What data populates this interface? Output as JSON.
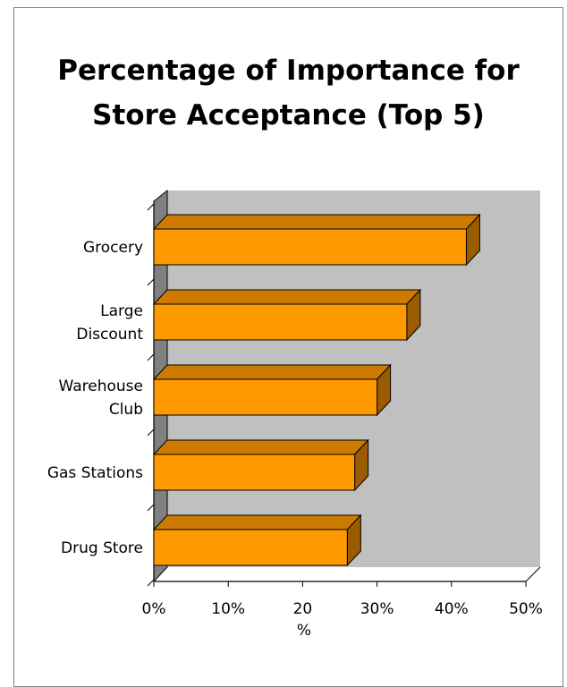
{
  "chart_data": {
    "type": "bar",
    "orientation": "horizontal",
    "title_lines": [
      "Percentage of Importance for",
      "Store Acceptance (Top 5)"
    ],
    "categories": [
      [
        "Grocery"
      ],
      [
        "Large",
        "Discount"
      ],
      [
        "Warehouse",
        "Club"
      ],
      [
        "Gas Stations"
      ],
      [
        "Drug Store"
      ]
    ],
    "values": [
      42,
      34,
      30,
      27,
      26
    ],
    "xlim": [
      0,
      50
    ],
    "xticks": [
      "0%",
      "10%",
      "20",
      "30%",
      "40%",
      "50%"
    ],
    "xlabel": "%",
    "grid": false,
    "legend": "none",
    "three_d": true,
    "colors": {
      "bar_front": "#FF9900",
      "bar_top": "#CC7A00",
      "bar_side": "#995C00",
      "wall": "#C0C0C0",
      "floor_wall": "#808080"
    }
  }
}
